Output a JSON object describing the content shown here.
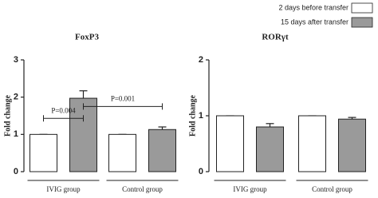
{
  "legend": [
    {
      "name": "2 days before transfer",
      "color": "#ffffff"
    },
    {
      "name": "15 days after transfer",
      "color": "#9a9a9a"
    }
  ],
  "chart_data": [
    {
      "type": "bar",
      "title": "FoxP3",
      "y_label": "Fold change",
      "categories": [
        "IVIG group",
        "Control group"
      ],
      "series": [
        {
          "values": [
            1.0,
            1.0
          ],
          "errors": [
            0,
            0
          ]
        },
        {
          "values": [
            1.97,
            1.13
          ],
          "errors": [
            0.2,
            0.07
          ]
        }
      ],
      "ylim": [
        0,
        3
      ],
      "yticks": [
        0,
        1,
        2,
        3
      ],
      "annotations": [
        {
          "text": "P=0.004",
          "y": 1.43
        },
        {
          "text": "P=0.001",
          "y": 1.75
        }
      ]
    },
    {
      "type": "bar",
      "title": "RORγt",
      "y_label": "Fold change",
      "categories": [
        "IVIG group",
        "Control group"
      ],
      "series": [
        {
          "values": [
            1.0,
            1.0
          ],
          "errors": [
            0,
            0
          ]
        },
        {
          "values": [
            0.8,
            0.94
          ],
          "errors": [
            0.06,
            0.03
          ]
        }
      ],
      "ylim": [
        0,
        2
      ],
      "yticks": [
        0,
        1,
        2
      ]
    }
  ]
}
